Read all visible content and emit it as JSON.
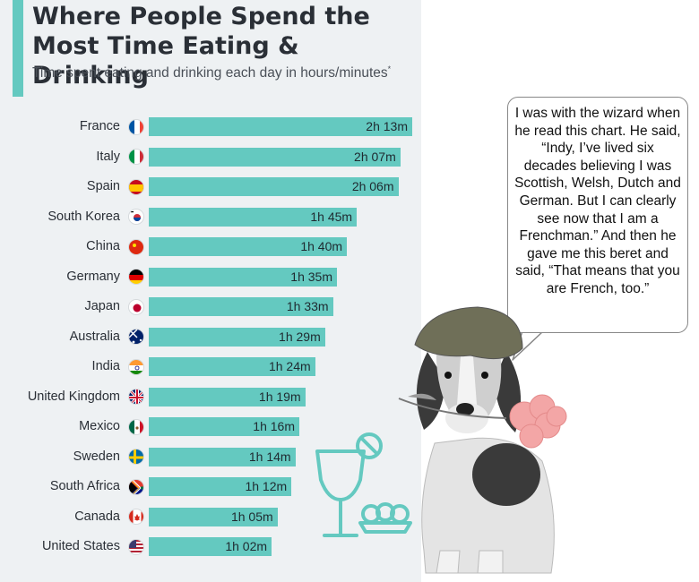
{
  "chart_data": {
    "type": "bar",
    "orientation": "horizontal",
    "title": "Where People Spend the Most Time Eating & Drinking",
    "subtitle": "Time spent eating and drinking each day in hours/minutes",
    "subtitle_mark": "*",
    "unit": "minutes",
    "categories": [
      "France",
      "Italy",
      "Spain",
      "South Korea",
      "China",
      "Germany",
      "Japan",
      "Australia",
      "India",
      "United Kingdom",
      "Mexico",
      "Sweden",
      "South Africa",
      "Canada",
      "United States"
    ],
    "values": [
      133,
      127,
      126,
      105,
      100,
      95,
      93,
      89,
      84,
      79,
      76,
      74,
      72,
      65,
      62
    ],
    "labels": [
      "2h 13m",
      "2h 07m",
      "2h 06m",
      "1h 45m",
      "1h 40m",
      "1h 35m",
      "1h 33m",
      "1h 29m",
      "1h 24m",
      "1h 19m",
      "1h 16m",
      "1h 14m",
      "1h 12m",
      "1h 05m",
      "1h 02m"
    ],
    "bar_color": "#64c9c0",
    "legend": "none",
    "grid": false
  },
  "speech_bubble": {
    "text": "I was with the wizard when he read this chart. He said, “Indy, I’ve lived six decades believing I was Scottish, Welsh, Dutch and German. But I can clearly see now that I am a Frenchman.” And then he gave me this beret and said, “That means that you are French, too.”"
  },
  "icons": [
    "cocktail-glass-icon",
    "food-dish-icon"
  ],
  "colors": {
    "accent": "#64c9c0",
    "title": "#2a2f36",
    "card_bg": "#eef1f3"
  }
}
